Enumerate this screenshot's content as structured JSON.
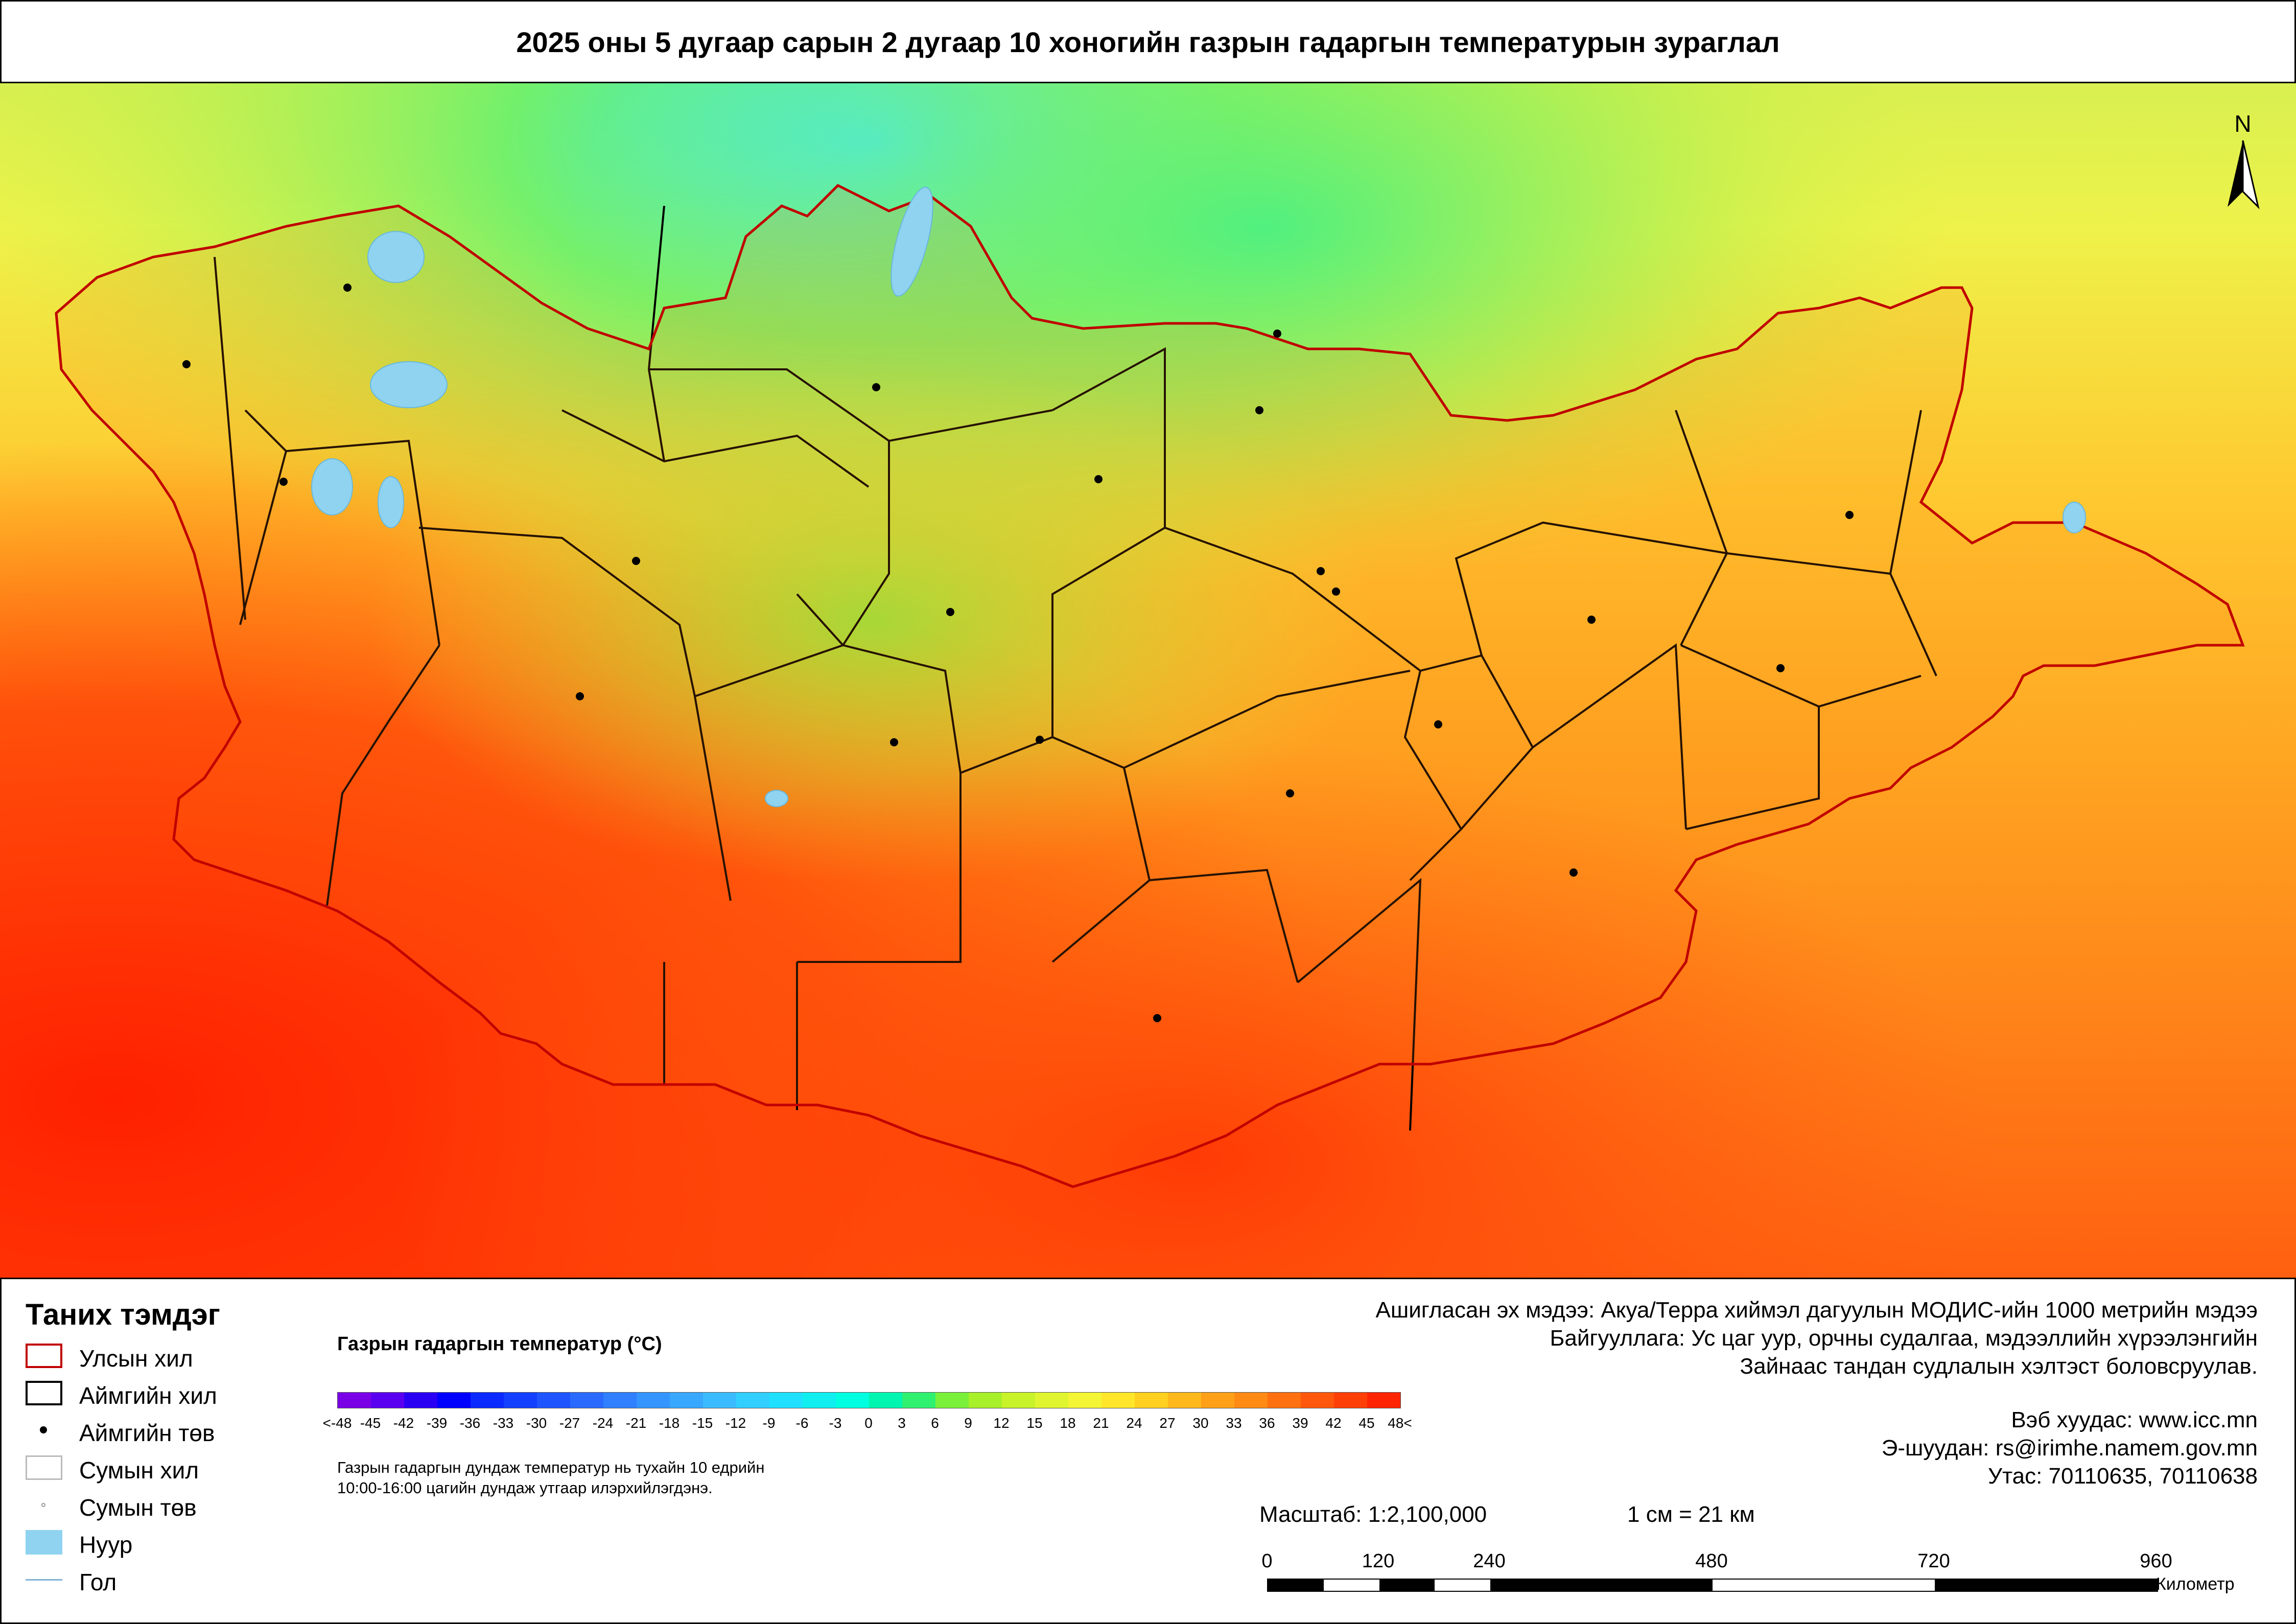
{
  "title": "2025 оны 5 дугаар сарын 2 дугаар 10 хоногийн газрын гадаргын температурын зураглал",
  "north_arrow": {
    "label": "N"
  },
  "legend": {
    "title": "Таних тэмдэг",
    "items": [
      {
        "label": "Улсын хил",
        "symbol": "country-border",
        "color": "#c00000"
      },
      {
        "label": "Аймгийн хил",
        "symbol": "province-border",
        "color": "#000000"
      },
      {
        "label": "Аймгийн төв",
        "symbol": "province-center",
        "color": "#000000"
      },
      {
        "label": "Сумын хил",
        "symbol": "soum-border",
        "color": "#bbbbbb"
      },
      {
        "label": "Сумын төв",
        "symbol": "soum-center",
        "color": "#999999"
      },
      {
        "label": "Нуур",
        "symbol": "lake",
        "color": "#8fd3f0"
      },
      {
        "label": "Гол",
        "symbol": "river",
        "color": "#7fb2d6"
      }
    ]
  },
  "colorbar": {
    "title": "Газрын гадаргын температур (°C)",
    "ticks": [
      "<-48",
      "-45",
      "-42",
      "-39",
      "-36",
      "-33",
      "-30",
      "-27",
      "-24",
      "-21",
      "-18",
      "-15",
      "-12",
      "-9",
      "-6",
      "-3",
      "0",
      "3",
      "6",
      "9",
      "12",
      "15",
      "18",
      "21",
      "24",
      "27",
      "30",
      "33",
      "36",
      "39",
      "42",
      "45",
      "48<"
    ],
    "colors": [
      "#7a00e6",
      "#5a00f0",
      "#2a00f5",
      "#0000ff",
      "#0a2aff",
      "#1440ff",
      "#1e55ff",
      "#2a6aff",
      "#3080ff",
      "#3595ff",
      "#38a8ff",
      "#3bbbff",
      "#30cfff",
      "#20e0ff",
      "#10eef0",
      "#00ffe0",
      "#00f5b0",
      "#30f070",
      "#7af03a",
      "#a8f02a",
      "#c8f22a",
      "#e0f530",
      "#f4f535",
      "#ffe62a",
      "#ffd020",
      "#ffb81c",
      "#ffa018",
      "#ff8a14",
      "#ff7010",
      "#ff580c",
      "#ff3f08",
      "#ff2404"
    ],
    "note_line1": "Газрын гадаргын дундаж температур нь тухайн 10 едрийн",
    "note_line2": "10:00-16:00 цагийн дундаж утгаар илэрхийлэгдэнэ."
  },
  "info": {
    "line1": "Ашигласан эх мэдээ: Акуа/Терра хиймэл дагуулын МОДИС-ийн 1000 метрийн мэдээ",
    "line2": "Байгууллага: Ус цаг уур, орчны судалгаа, мэдээллийн хүрээлэнгийн",
    "line3": "Зайнаас тандан судлалын хэлтэст боловсруулав.",
    "web": "Вэб хуудас: www.icc.mn",
    "email": "Э-шуудан: rs@irimhe.namem.gov.mn",
    "phone": "Утас: 70110635, 70110638"
  },
  "scale": {
    "ratio": "Масштаб: 1:2,100,000",
    "cm": "1 см = 21 км",
    "ticks": [
      "0",
      "120",
      "240",
      "480",
      "720",
      "960"
    ],
    "unit": "Километр"
  }
}
